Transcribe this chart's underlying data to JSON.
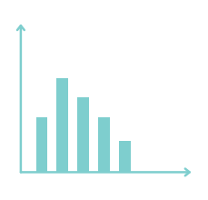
{
  "bar_values": [
    3.5,
    6.0,
    4.8,
    3.5,
    2.0
  ],
  "bar_color": "#7ECECE",
  "bar_width": 0.55,
  "bar_positions": [
    1,
    2,
    3,
    4,
    5
  ],
  "background_color": "#ffffff",
  "axis_color": "#7ECECE",
  "axis_linewidth": 1.8,
  "arrow_color": "#7ECECE",
  "xlim": [
    -0.2,
    8.5
  ],
  "ylim": [
    -0.5,
    10.0
  ]
}
